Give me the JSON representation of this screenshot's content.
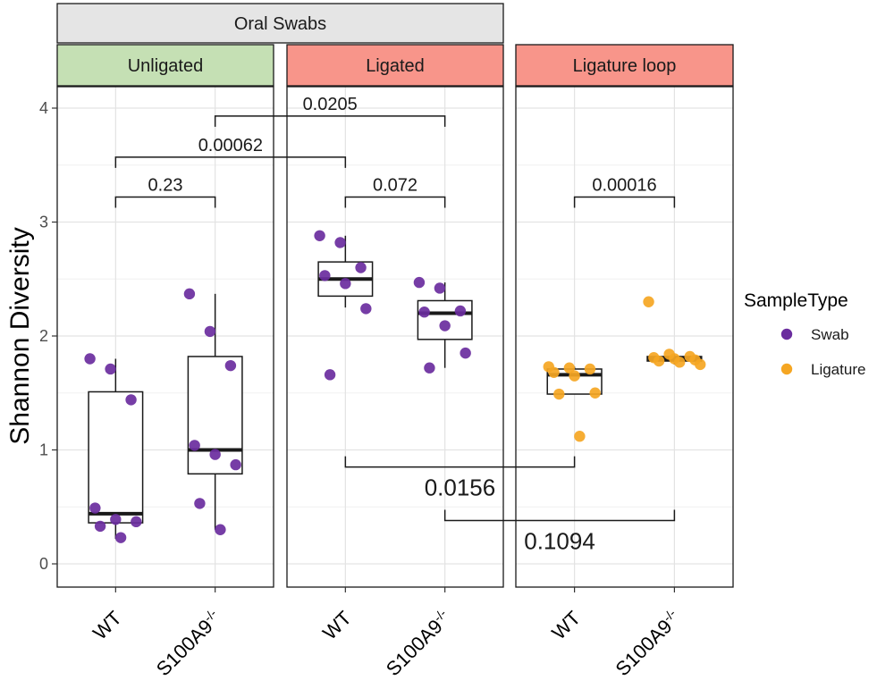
{
  "chart_data": {
    "type": "box",
    "outer_strip": "Oral Swabs",
    "ylabel": "Shannon Diversity",
    "ylim": [
      -0.2,
      4.3
    ],
    "yticks": [
      0,
      1,
      2,
      3,
      4
    ],
    "grid": true,
    "legend": {
      "title": "SampleType",
      "position": "right",
      "entries": [
        {
          "label": "Swab",
          "color": "#6A2C9E"
        },
        {
          "label": "Ligature",
          "color": "#F5A623"
        }
      ]
    },
    "panels": [
      {
        "name": "Unligated",
        "strip_color": "#C5E0B4",
        "categories": [
          "WT",
          "S100A9-/-"
        ],
        "groups": [
          {
            "category": "WT",
            "sample_type": "Swab",
            "box": {
              "min": 0.22,
              "q1": 0.36,
              "median": 0.44,
              "q3": 1.51,
              "max": 1.8
            },
            "points": [
              1.8,
              1.71,
              1.44,
              0.49,
              0.39,
              0.37,
              0.33,
              0.23
            ]
          },
          {
            "category": "S100A9-/-",
            "sample_type": "Swab",
            "box": {
              "min": 0.3,
              "q1": 0.79,
              "median": 1.0,
              "q3": 1.82,
              "max": 2.37
            },
            "points": [
              2.37,
              2.04,
              1.74,
              1.04,
              0.96,
              0.87,
              0.53,
              0.3
            ]
          }
        ]
      },
      {
        "name": "Ligated",
        "strip_color": "#F8958A",
        "categories": [
          "WT",
          "S100A9-/-"
        ],
        "groups": [
          {
            "category": "WT",
            "sample_type": "Swab",
            "box": {
              "min": 2.25,
              "q1": 2.35,
              "median": 2.5,
              "q3": 2.65,
              "max": 2.88
            },
            "points": [
              2.88,
              2.82,
              2.6,
              2.53,
              2.46,
              2.24,
              1.66
            ]
          },
          {
            "category": "S100A9-/-",
            "sample_type": "Swab",
            "box": {
              "min": 1.72,
              "q1": 1.97,
              "median": 2.2,
              "q3": 2.31,
              "max": 2.47
            },
            "points": [
              2.47,
              2.42,
              2.22,
              2.21,
              2.09,
              1.85,
              1.72
            ]
          }
        ]
      },
      {
        "name": "Ligature loop",
        "strip_color": "#F8958A",
        "categories": [
          "WT",
          "S100A9-/-"
        ],
        "groups": [
          {
            "category": "WT",
            "sample_type": "Ligature",
            "box": {
              "min": 1.49,
              "q1": 1.49,
              "median": 1.66,
              "q3": 1.71,
              "max": 1.73
            },
            "points": [
              1.73,
              1.72,
              1.71,
              1.68,
              1.65,
              1.5,
              1.49,
              1.12
            ]
          },
          {
            "category": "S100A9-/-",
            "sample_type": "Ligature",
            "box": {
              "min": 1.75,
              "q1": 1.78,
              "median": 1.8,
              "q3": 1.82,
              "max": 1.84
            },
            "points": [
              2.3,
              1.84,
              1.82,
              1.81,
              1.8,
              1.79,
              1.78,
              1.77,
              1.75
            ]
          }
        ]
      }
    ],
    "comparisons": [
      {
        "label": "0.0205",
        "from": [
          0,
          1
        ],
        "to": [
          1,
          1
        ],
        "y": 3.93,
        "direction": "down",
        "style": "small"
      },
      {
        "label": "0.00062",
        "from": [
          0,
          0
        ],
        "to": [
          1,
          0
        ],
        "y": 3.57,
        "direction": "down",
        "style": "small"
      },
      {
        "label": "0.23",
        "from": [
          0,
          0
        ],
        "to": [
          0,
          1
        ],
        "y": 3.22,
        "direction": "down",
        "style": "small"
      },
      {
        "label": "0.072",
        "from": [
          1,
          0
        ],
        "to": [
          1,
          1
        ],
        "y": 3.22,
        "direction": "down",
        "style": "small"
      },
      {
        "label": "0.00016",
        "from": [
          2,
          0
        ],
        "to": [
          2,
          1
        ],
        "y": 3.22,
        "direction": "down",
        "style": "small"
      },
      {
        "label": "0.0156",
        "from": [
          1,
          0
        ],
        "to": [
          2,
          0
        ],
        "y": 0.85,
        "direction": "up",
        "style": "large"
      },
      {
        "label": "0.1094",
        "from": [
          1,
          1
        ],
        "to": [
          2,
          1
        ],
        "y": 0.38,
        "direction": "up",
        "style": "large"
      }
    ]
  },
  "colors": {
    "swab": "#6A2C9E",
    "ligature": "#F5A623",
    "strip_outer": "#E5E5E5",
    "strip_unligated": "#C5E0B4",
    "strip_ligated": "#F8958A"
  }
}
